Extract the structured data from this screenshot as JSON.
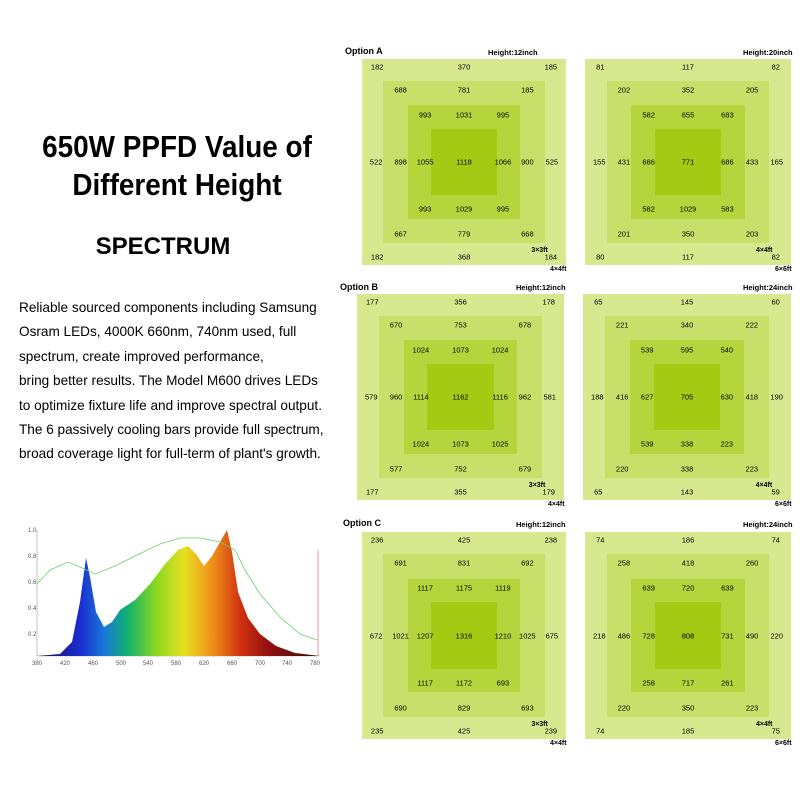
{
  "title": "650W  PPFD Value of Different Height",
  "title_line1": "650W  PPFD Value of",
  "title_line2": "Different Height",
  "subtitle": "SPECTRUM",
  "description": "Reliable sourced components including Samsung\nOsram LEDs, 4000K 660nm, 740nm used, full\nspectrum, create improved performance,\nbring better results. The Model M600 drives LEDs\nto optimize fixture life and improve spectral output.\nThe 6 passively  cooling bars provide full spectrum,\nbroad coverage light for full-term of plant's growth.",
  "colors": {
    "outer": "#d8e88f",
    "ring2": "#c8e06a",
    "ring3": "#b6d53d",
    "center": "#a6c913"
  },
  "spectrum": {
    "y_ticks": [
      "1.0",
      "0.8",
      "0.6",
      "0.4",
      "0.2"
    ],
    "x_ticks": [
      "380",
      "420",
      "460",
      "500",
      "540",
      "580",
      "620",
      "660",
      "700",
      "740",
      "780"
    ]
  },
  "options": [
    {
      "label": "Option A",
      "left": {
        "height": "Height:12inch",
        "inner": "3×3ft",
        "outer": "4×4ft",
        "r1": {
          "t": [
            "182",
            "370",
            "185"
          ],
          "m": [
            "522",
            "525"
          ],
          "b": [
            "182",
            "368",
            "184"
          ]
        },
        "r2": {
          "t": [
            "688",
            "781",
            "185"
          ],
          "m": [
            "898",
            "900"
          ],
          "b": [
            "667",
            "779",
            "668"
          ]
        },
        "r3": {
          "t": [
            "993",
            "1031",
            "995"
          ],
          "m": [
            "1055",
            "1066"
          ],
          "b": [
            "993",
            "1029",
            "995"
          ]
        },
        "c": "1118"
      },
      "right": {
        "height": "Height:20inch",
        "inner": "4×4ft",
        "outer": "6×6ft",
        "r1": {
          "t": [
            "81",
            "117",
            "82"
          ],
          "m": [
            "155",
            "165"
          ],
          "b": [
            "80",
            "117",
            "82"
          ]
        },
        "r2": {
          "t": [
            "202",
            "352",
            "205"
          ],
          "m": [
            "431",
            "433"
          ],
          "b": [
            "201",
            "350",
            "203"
          ]
        },
        "r3": {
          "t": [
            "582",
            "655",
            "683"
          ],
          "m": [
            "686",
            "686"
          ],
          "b": [
            "582",
            "1029",
            "583"
          ]
        },
        "c": "771"
      }
    },
    {
      "label": "Option B",
      "left": {
        "height": "Height:12inch",
        "inner": "3×3ft",
        "outer": "4×4ft",
        "r1": {
          "t": [
            "177",
            "356",
            "178"
          ],
          "m": [
            "579",
            "581"
          ],
          "b": [
            "177",
            "355",
            "179"
          ]
        },
        "r2": {
          "t": [
            "670",
            "753",
            "678"
          ],
          "m": [
            "960",
            "962"
          ],
          "b": [
            "577",
            "752",
            "679"
          ]
        },
        "r3": {
          "t": [
            "1024",
            "1073",
            "1024"
          ],
          "m": [
            "1114",
            "1116"
          ],
          "b": [
            "1024",
            "1073",
            "1025"
          ]
        },
        "c": "1162"
      },
      "right": {
        "height": "Height:24inch",
        "inner": "4×4ft",
        "outer": "6×6ft",
        "r1": {
          "t": [
            "65",
            "145",
            "60"
          ],
          "m": [
            "188",
            "190"
          ],
          "b": [
            "65",
            "143",
            "59"
          ]
        },
        "r2": {
          "t": [
            "221",
            "340",
            "222"
          ],
          "m": [
            "416",
            "418"
          ],
          "b": [
            "220",
            "338",
            "223"
          ]
        },
        "r3": {
          "t": [
            "539",
            "595",
            "540"
          ],
          "m": [
            "627",
            "630"
          ],
          "b": [
            "539",
            "338",
            "223"
          ]
        },
        "c": "705"
      }
    },
    {
      "label": "Option C",
      "left": {
        "height": "Height:12inch",
        "inner": "3×3ft",
        "outer": "4×4ft",
        "r1": {
          "t": [
            "236",
            "425",
            "238"
          ],
          "m": [
            "672",
            "675"
          ],
          "b": [
            "235",
            "425",
            "239"
          ]
        },
        "r2": {
          "t": [
            "691",
            "831",
            "692"
          ],
          "m": [
            "1021",
            "1025"
          ],
          "b": [
            "690",
            "829",
            "693"
          ]
        },
        "r3": {
          "t": [
            "1117",
            "1175",
            "1119"
          ],
          "m": [
            "1207",
            "1210"
          ],
          "b": [
            "1117",
            "1172",
            "693"
          ]
        },
        "c": "1316"
      },
      "right": {
        "height": "Height:24inch",
        "inner": "4×4ft",
        "outer": "6×6ft",
        "r1": {
          "t": [
            "74",
            "186",
            "74"
          ],
          "m": [
            "218",
            "220"
          ],
          "b": [
            "74",
            "185",
            "75"
          ]
        },
        "r2": {
          "t": [
            "258",
            "418",
            "260"
          ],
          "m": [
            "486",
            "490"
          ],
          "b": [
            "220",
            "350",
            "223"
          ]
        },
        "r3": {
          "t": [
            "639",
            "720",
            "639"
          ],
          "m": [
            "728",
            "731"
          ],
          "b": [
            "258",
            "717",
            "261"
          ]
        },
        "c": "808"
      }
    }
  ]
}
